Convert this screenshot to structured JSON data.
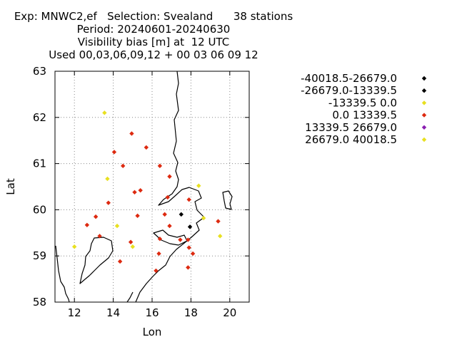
{
  "chart_data": {
    "type": "scatter",
    "title_lines": [
      "Exp: MNWC2,ef   Selection: Svealand      38 stations",
      "Period: 20240601-20240630",
      "Visibility bias [m] at  12 UTC",
      "Used 00,03,06,09,12 + 00 03 06 09 12"
    ],
    "xlabel": "Lon",
    "ylabel": "Lat",
    "xlim": [
      11,
      21
    ],
    "ylim": [
      58,
      63
    ],
    "xticks": [
      12,
      14,
      16,
      18,
      20
    ],
    "yticks": [
      58,
      59,
      60,
      61,
      62,
      63
    ],
    "grid": true,
    "legend_position": "right",
    "legend": [
      {
        "label": "-40018.5-26679.0",
        "color": "#000000"
      },
      {
        "label": "-26679.0-13339.5",
        "color": "#000000"
      },
      {
        "label": "-13339.5 0.0",
        "color": "#e8e020"
      },
      {
        "label": "0.0 13339.5",
        "color": "#dd2a10"
      },
      {
        "label": "13339.5 26679.0",
        "color": "#8a1fb0"
      },
      {
        "label": "26679.0 40018.5",
        "color": "#e8e020"
      }
    ],
    "series": [
      {
        "legend_index": 1,
        "points": [
          [
            17.5,
            59.9
          ],
          [
            17.95,
            59.63
          ]
        ]
      },
      {
        "legend_index": 2,
        "points": [
          [
            13.55,
            62.1
          ],
          [
            13.7,
            60.67
          ],
          [
            14.2,
            59.65
          ],
          [
            15.0,
            59.2
          ],
          [
            12.0,
            59.2
          ],
          [
            18.4,
            60.52
          ],
          [
            18.65,
            59.82
          ],
          [
            19.5,
            59.43
          ]
        ]
      },
      {
        "legend_index": 3,
        "points": [
          [
            14.95,
            61.65
          ],
          [
            15.7,
            61.35
          ],
          [
            14.05,
            61.25
          ],
          [
            14.5,
            60.95
          ],
          [
            16.4,
            60.95
          ],
          [
            16.9,
            60.72
          ],
          [
            15.1,
            60.38
          ],
          [
            15.4,
            60.42
          ],
          [
            16.8,
            60.27
          ],
          [
            17.9,
            60.22
          ],
          [
            13.75,
            60.15
          ],
          [
            13.1,
            59.85
          ],
          [
            15.25,
            59.87
          ],
          [
            16.65,
            59.9
          ],
          [
            12.65,
            59.67
          ],
          [
            16.9,
            59.65
          ],
          [
            19.4,
            59.75
          ],
          [
            13.3,
            59.43
          ],
          [
            16.4,
            59.37
          ],
          [
            17.45,
            59.35
          ],
          [
            17.85,
            59.35
          ],
          [
            14.9,
            59.3
          ],
          [
            17.9,
            59.18
          ],
          [
            18.1,
            59.05
          ],
          [
            16.35,
            59.05
          ],
          [
            14.35,
            58.88
          ],
          [
            17.85,
            58.75
          ],
          [
            16.2,
            58.68
          ]
        ]
      }
    ]
  }
}
